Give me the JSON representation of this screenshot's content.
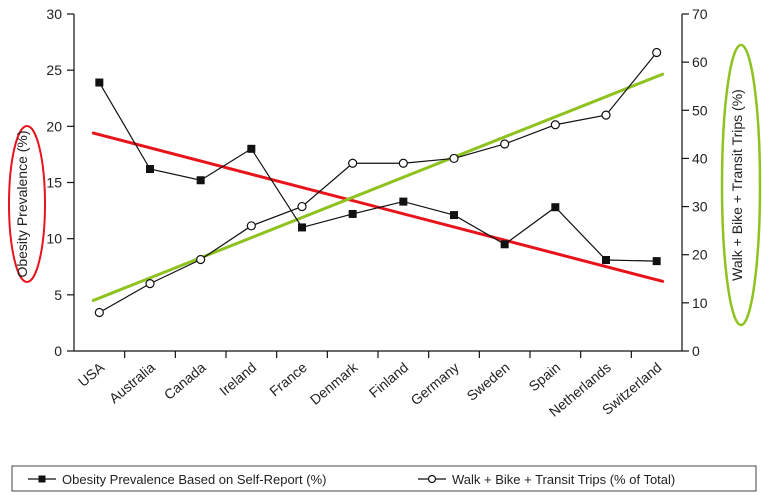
{
  "chart_data": {
    "type": "line",
    "categories": [
      "USA",
      "Australia",
      "Canada",
      "Ireland",
      "France",
      "Denmark",
      "Finland",
      "Germany",
      "Sweden",
      "Spain",
      "Netherlands",
      "Switzerland"
    ],
    "y_left": {
      "label": "Obesity Prevalence (%)",
      "lim": [
        0,
        30
      ],
      "ticks": [
        0,
        5,
        10,
        15,
        20,
        25,
        30
      ]
    },
    "y_right": {
      "label": "Walk + Bike + Transit Trips (%)",
      "lim": [
        0,
        70
      ],
      "ticks": [
        0,
        10,
        20,
        30,
        40,
        50,
        60,
        70
      ]
    },
    "series": [
      {
        "name": "Obesity Prevalence Based on Self-Report (%)",
        "axis": "left",
        "marker": "filled-square",
        "values": [
          23.9,
          16.2,
          15.2,
          18.0,
          11.0,
          12.2,
          13.3,
          12.1,
          9.5,
          12.8,
          8.1,
          8.0
        ]
      },
      {
        "name": "Walk + Bike + Transit Trips (% of Total)",
        "axis": "right",
        "marker": "open-circle",
        "values": [
          8,
          14,
          19,
          26,
          30,
          39,
          39,
          40,
          43,
          47,
          49,
          62
        ]
      }
    ],
    "trendlines": [
      {
        "axis": "left",
        "color": "#e8141c",
        "start": 19.4,
        "end": 6.2
      },
      {
        "axis": "right",
        "color": "#8ec21f",
        "start": 10.5,
        "end": 57.5
      }
    ],
    "annotations": [
      {
        "target": "left-axis-title",
        "shape": "ellipse",
        "color": "#e8141c"
      },
      {
        "target": "right-axis-title",
        "shape": "ellipse",
        "color": "#8ec21f"
      }
    ],
    "legend": "bottom",
    "grid": false
  }
}
